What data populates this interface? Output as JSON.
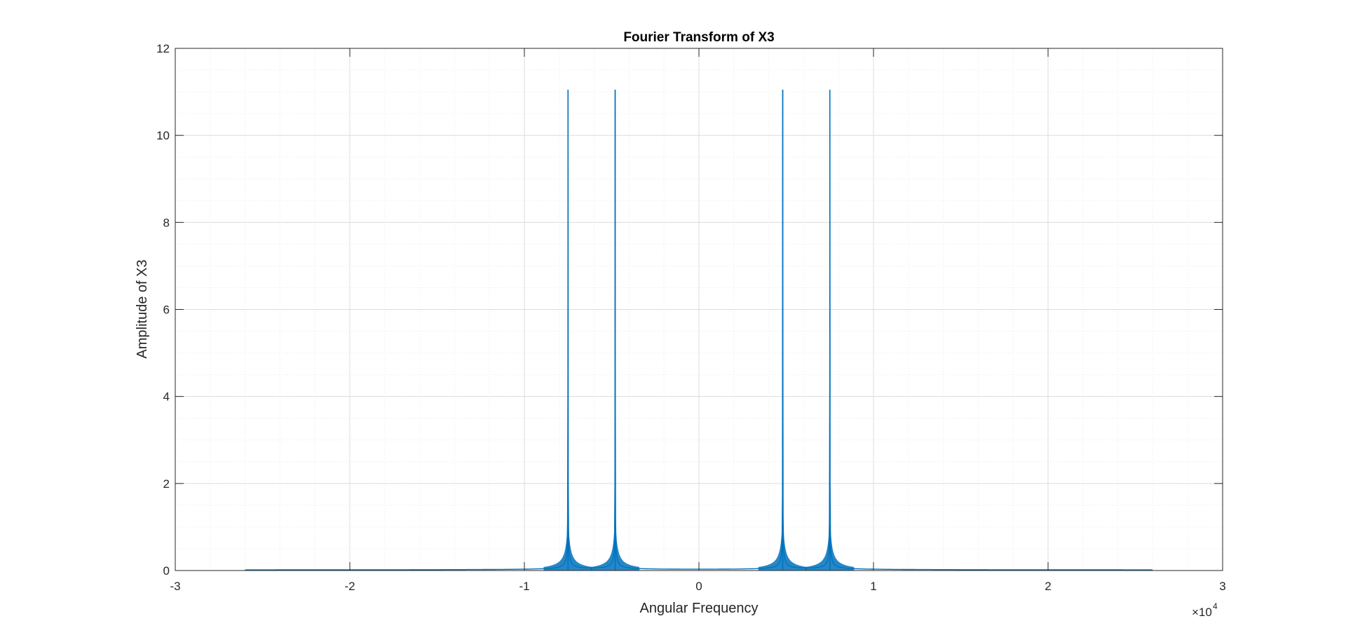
{
  "chart_data": {
    "type": "line",
    "title": "Fourier Transform of X3",
    "xlabel": "Angular Frequency",
    "ylabel": "Amplitude of X3",
    "x_exponent_label": "×10",
    "x_exponent_power": "4",
    "xlim": [
      -3,
      3
    ],
    "ylim": [
      0,
      12
    ],
    "x_ticks": [
      -3,
      -2,
      -1,
      0,
      1,
      2,
      3
    ],
    "x_tick_labels": [
      "-3",
      "-2",
      "-1",
      "0",
      "1",
      "2",
      "3"
    ],
    "y_ticks": [
      0,
      2,
      4,
      6,
      8,
      10,
      12
    ],
    "y_tick_labels": [
      "0",
      "2",
      "4",
      "6",
      "8",
      "10",
      "12"
    ],
    "grid": true,
    "minor_grid": true,
    "line_color": "#0072bd",
    "x_data_range": [
      -2.6,
      2.6
    ],
    "floor_value": 0.01,
    "peaks": [
      {
        "x": -0.75,
        "y": 11.05
      },
      {
        "x": -0.48,
        "y": 11.05
      },
      {
        "x": 0.48,
        "y": 11.05
      },
      {
        "x": 0.75,
        "y": 11.05
      }
    ],
    "peak_envelope_scale": 0.003
  }
}
